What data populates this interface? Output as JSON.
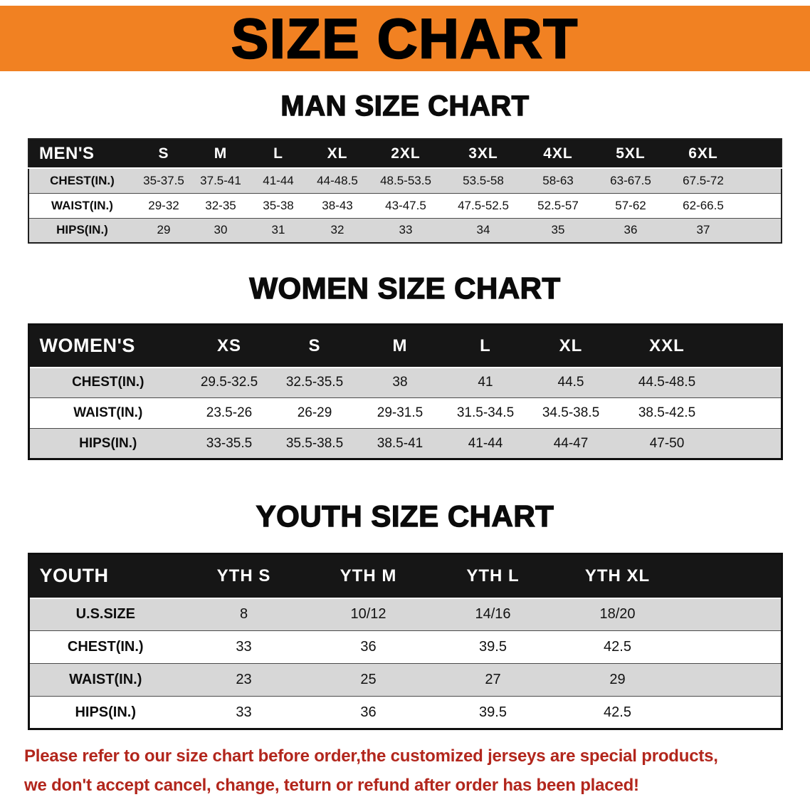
{
  "banner": {
    "title": "SIZE CHART"
  },
  "colors": {
    "banner_orange": "#f18122",
    "table_header_bg": "#161616",
    "row_gray": "#d7d7d7",
    "row_white": "#ffffff",
    "heading_black": "#0b0b0b",
    "disclaimer_red": "#b2261c"
  },
  "sections": [
    {
      "id": "mens",
      "heading": "MAN SIZE CHART",
      "columns": [
        "MEN'S",
        "S",
        "M",
        "L",
        "XL",
        "2XL",
        "3XL",
        "4XL",
        "5XL",
        "6XL"
      ],
      "rows": [
        [
          "CHEST(IN.)",
          "35-37.5",
          "37.5-41",
          "41-44",
          "44-48.5",
          "48.5-53.5",
          "53.5-58",
          "58-63",
          "63-67.5",
          "67.5-72"
        ],
        [
          "WAIST(IN.)",
          "29-32",
          "32-35",
          "35-38",
          "38-43",
          "43-47.5",
          "47.5-52.5",
          "52.5-57",
          "57-62",
          "62-66.5"
        ],
        [
          "HIPS(IN.)",
          "29",
          "30",
          "31",
          "32",
          "33",
          "34",
          "35",
          "36",
          "37"
        ]
      ]
    },
    {
      "id": "womens",
      "heading": "WOMEN SIZE CHART",
      "columns": [
        "WOMEN'S",
        "XS",
        "S",
        "M",
        "L",
        "XL",
        "XXL"
      ],
      "rows": [
        [
          "CHEST(IN.)",
          "29.5-32.5",
          "32.5-35.5",
          "38",
          "41",
          "44.5",
          "44.5-48.5"
        ],
        [
          "WAIST(IN.)",
          "23.5-26",
          "26-29",
          "29-31.5",
          "31.5-34.5",
          "34.5-38.5",
          "38.5-42.5"
        ],
        [
          "HIPS(IN.)",
          "33-35.5",
          "35.5-38.5",
          "38.5-41",
          "41-44",
          "44-47",
          "47-50"
        ]
      ]
    },
    {
      "id": "youth",
      "heading": "YOUTH SIZE CHART",
      "columns": [
        "YOUTH",
        "YTH S",
        "YTH M",
        "YTH L",
        "YTH XL"
      ],
      "rows": [
        [
          "U.S.SIZE",
          "8",
          "10/12",
          "14/16",
          "18/20"
        ],
        [
          "CHEST(IN.)",
          "33",
          "36",
          "39.5",
          "42.5"
        ],
        [
          "WAIST(IN.)",
          "23",
          "25",
          "27",
          "29"
        ],
        [
          "HIPS(IN.)",
          "33",
          "36",
          "39.5",
          "42.5"
        ]
      ]
    }
  ],
  "disclaimer": {
    "line1": "Please refer to our size chart before order,the customized jerseys are special products,",
    "line2": "we don't accept cancel, change, teturn or refund after order has been placed!"
  }
}
